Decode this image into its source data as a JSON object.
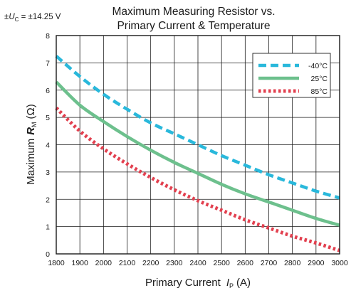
{
  "chart_data": {
    "type": "line",
    "title_line1": "Maximum Measuring Resistor vs.",
    "title_line2": "Primary Current & Temperature",
    "supply_note": {
      "prefix": "±",
      "symbol": "U",
      "subscript": "C",
      "value": " = ±14.25 V"
    },
    "xlabel": {
      "text": "Primary Current",
      "symbol": "I",
      "subscript": "P",
      "unit": "(A)"
    },
    "ylabel": {
      "text": "Maximum",
      "symbol": "R",
      "subscript": "M",
      "unit": "(Ω)"
    },
    "xlim": [
      1800,
      3000
    ],
    "ylim": [
      0,
      8
    ],
    "x_ticks": [
      "1800",
      "1900",
      "2000",
      "2100",
      "2200",
      "2300",
      "2400",
      "2500",
      "2600",
      "2700",
      "2800",
      "2900",
      "3000"
    ],
    "y_ticks": [
      "0",
      "1",
      "2",
      "3",
      "4",
      "5",
      "6",
      "7",
      "8"
    ],
    "grid": true,
    "legend_position": "top-right",
    "x": [
      1800,
      1900,
      2000,
      2100,
      2200,
      2300,
      2400,
      2500,
      2600,
      2700,
      2800,
      2900,
      3000
    ],
    "series": [
      {
        "name": "-40°C",
        "color": "#29b8db",
        "style": "dashed",
        "values": [
          7.25,
          6.5,
          5.85,
          5.3,
          4.8,
          4.4,
          4.0,
          3.6,
          3.25,
          2.9,
          2.6,
          2.3,
          2.05
        ]
      },
      {
        "name": "25°C",
        "color": "#6dc08d",
        "style": "solid",
        "values": [
          6.3,
          5.45,
          4.85,
          4.3,
          3.8,
          3.35,
          2.95,
          2.55,
          2.2,
          1.9,
          1.6,
          1.3,
          1.05
        ]
      },
      {
        "name": "85°C",
        "color": "#e2404f",
        "style": "dotted",
        "values": [
          5.35,
          4.5,
          3.85,
          3.3,
          2.8,
          2.35,
          1.95,
          1.6,
          1.25,
          0.95,
          0.65,
          0.4,
          0.12
        ]
      }
    ]
  }
}
